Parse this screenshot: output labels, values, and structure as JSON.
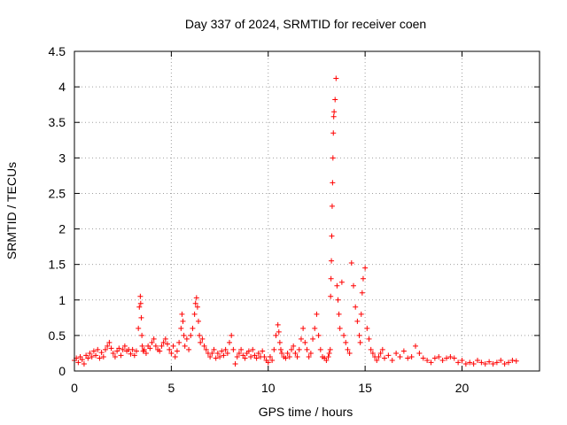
{
  "chart_data": {
    "type": "scatter",
    "title": "Day 337 of 2024, SRMTID for receiver coen",
    "xlabel": "GPS time / hours",
    "ylabel": "SRMTID / TECUs",
    "xlim": [
      0,
      24
    ],
    "ylim": [
      0,
      4.5
    ],
    "xticks": [
      0,
      5,
      10,
      15,
      20
    ],
    "xtick_labels": [
      "0",
      "5",
      "10",
      "15",
      "20"
    ],
    "yticks": [
      0,
      0.5,
      1,
      1.5,
      2,
      2.5,
      3,
      3.5,
      4,
      4.5
    ],
    "ytick_labels": [
      "0",
      "0.5",
      "1",
      "1.5",
      "2",
      "2.5",
      "3",
      "3.5",
      "4",
      "4.5"
    ],
    "grid": true,
    "marker": "+",
    "series_color": "#ff0000",
    "series": [
      {
        "name": "SRMTID",
        "x": [
          0.0,
          0.1,
          0.2,
          0.3,
          0.4,
          0.5,
          0.6,
          0.7,
          0.8,
          0.9,
          1.0,
          1.1,
          1.2,
          1.3,
          1.4,
          1.5,
          1.6,
          1.7,
          1.8,
          1.9,
          2.0,
          2.1,
          2.2,
          2.3,
          2.4,
          2.5,
          2.6,
          2.7,
          2.8,
          2.9,
          3.0,
          3.1,
          3.2,
          3.3,
          3.35,
          3.4,
          3.42,
          3.45,
          3.48,
          3.5,
          3.55,
          3.6,
          3.7,
          3.8,
          3.9,
          4.0,
          4.1,
          4.2,
          4.3,
          4.4,
          4.5,
          4.6,
          4.7,
          4.8,
          4.9,
          5.0,
          5.1,
          5.2,
          5.3,
          5.4,
          5.5,
          5.55,
          5.6,
          5.65,
          5.7,
          5.8,
          5.9,
          6.0,
          6.1,
          6.2,
          6.25,
          6.3,
          6.35,
          6.4,
          6.45,
          6.5,
          6.6,
          6.7,
          6.8,
          6.9,
          7.0,
          7.1,
          7.2,
          7.3,
          7.4,
          7.5,
          7.6,
          7.7,
          7.8,
          7.9,
          8.0,
          8.1,
          8.2,
          8.3,
          8.4,
          8.5,
          8.6,
          8.7,
          8.8,
          8.9,
          9.0,
          9.1,
          9.2,
          9.3,
          9.4,
          9.5,
          9.6,
          9.7,
          9.8,
          9.9,
          10.0,
          10.1,
          10.2,
          10.3,
          10.4,
          10.5,
          10.55,
          10.6,
          10.65,
          10.7,
          10.8,
          10.9,
          11.0,
          11.1,
          11.2,
          11.3,
          11.4,
          11.5,
          11.6,
          11.7,
          11.8,
          11.9,
          12.0,
          12.1,
          12.2,
          12.3,
          12.4,
          12.5,
          12.6,
          12.7,
          12.8,
          12.9,
          13.0,
          13.1,
          13.15,
          13.2,
          13.22,
          13.24,
          13.26,
          13.28,
          13.3,
          13.32,
          13.34,
          13.36,
          13.38,
          13.4,
          13.45,
          13.5,
          13.55,
          13.6,
          13.65,
          13.7,
          13.8,
          13.9,
          14.0,
          14.1,
          14.2,
          14.3,
          14.4,
          14.5,
          14.6,
          14.7,
          14.75,
          14.8,
          14.85,
          14.9,
          15.0,
          15.1,
          15.2,
          15.3,
          15.4,
          15.5,
          15.6,
          15.7,
          15.8,
          15.9,
          16.0,
          16.2,
          16.4,
          16.6,
          16.8,
          17.0,
          17.2,
          17.4,
          17.6,
          17.8,
          18.0,
          18.2,
          18.4,
          18.6,
          18.8,
          19.0,
          19.2,
          19.4,
          19.6,
          19.8,
          20.0,
          20.2,
          20.4,
          20.6,
          20.8,
          21.0,
          21.2,
          21.4,
          21.6,
          21.8,
          22.0,
          22.2,
          22.4,
          22.6,
          22.8
        ],
        "y": [
          0.15,
          0.18,
          0.12,
          0.2,
          0.16,
          0.1,
          0.22,
          0.18,
          0.25,
          0.2,
          0.28,
          0.22,
          0.3,
          0.18,
          0.26,
          0.2,
          0.3,
          0.35,
          0.4,
          0.32,
          0.25,
          0.2,
          0.28,
          0.32,
          0.22,
          0.3,
          0.35,
          0.28,
          0.3,
          0.24,
          0.3,
          0.22,
          0.28,
          0.6,
          0.9,
          1.05,
          0.95,
          0.75,
          0.5,
          0.35,
          0.28,
          0.3,
          0.25,
          0.35,
          0.32,
          0.4,
          0.45,
          0.35,
          0.3,
          0.28,
          0.35,
          0.4,
          0.45,
          0.38,
          0.3,
          0.25,
          0.35,
          0.2,
          0.28,
          0.4,
          0.6,
          0.8,
          0.7,
          0.5,
          0.35,
          0.45,
          0.3,
          0.5,
          0.6,
          0.8,
          0.95,
          1.03,
          0.9,
          0.7,
          0.5,
          0.4,
          0.45,
          0.35,
          0.3,
          0.25,
          0.2,
          0.25,
          0.3,
          0.18,
          0.25,
          0.2,
          0.28,
          0.22,
          0.3,
          0.25,
          0.4,
          0.5,
          0.3,
          0.1,
          0.2,
          0.25,
          0.3,
          0.22,
          0.18,
          0.25,
          0.28,
          0.2,
          0.3,
          0.22,
          0.18,
          0.25,
          0.2,
          0.28,
          0.2,
          0.15,
          0.12,
          0.2,
          0.15,
          0.3,
          0.5,
          0.65,
          0.55,
          0.4,
          0.3,
          0.25,
          0.2,
          0.18,
          0.25,
          0.2,
          0.3,
          0.35,
          0.25,
          0.2,
          0.3,
          0.45,
          0.6,
          0.4,
          0.3,
          0.2,
          0.25,
          0.45,
          0.6,
          0.8,
          0.5,
          0.3,
          0.2,
          0.18,
          0.15,
          0.2,
          0.25,
          0.3,
          1.05,
          1.3,
          1.55,
          1.9,
          2.32,
          2.65,
          3.0,
          3.35,
          3.58,
          3.65,
          3.82,
          4.12,
          1.2,
          1.0,
          0.8,
          0.6,
          1.25,
          0.5,
          0.4,
          0.3,
          0.25,
          1.52,
          1.2,
          0.9,
          0.7,
          0.5,
          0.4,
          0.8,
          1.1,
          1.3,
          1.45,
          0.6,
          0.45,
          0.3,
          0.25,
          0.2,
          0.15,
          0.2,
          0.25,
          0.3,
          0.18,
          0.22,
          0.15,
          0.25,
          0.2,
          0.28,
          0.18,
          0.2,
          0.35,
          0.25,
          0.18,
          0.15,
          0.12,
          0.18,
          0.2,
          0.15,
          0.18,
          0.2,
          0.18,
          0.12,
          0.15,
          0.1,
          0.12,
          0.1,
          0.15,
          0.12,
          0.1,
          0.13,
          0.1,
          0.12,
          0.15,
          0.1,
          0.12,
          0.15,
          0.14
        ]
      }
    ]
  }
}
